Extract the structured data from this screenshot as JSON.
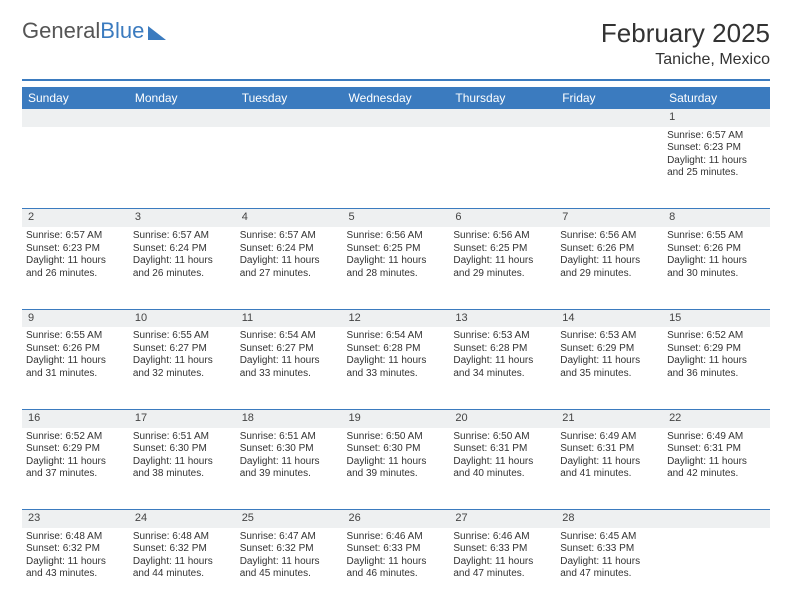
{
  "logo": {
    "word1": "General",
    "word2": "Blue"
  },
  "title": "February 2025",
  "location": "Taniche, Mexico",
  "colors": {
    "accent": "#3b7bbf",
    "header_bg": "#3b7bbf",
    "header_text": "#ffffff",
    "daynum_bg": "#eef0f1",
    "border": "#3b7bbf",
    "text": "#333333",
    "background": "#ffffff"
  },
  "dayHeaders": [
    "Sunday",
    "Monday",
    "Tuesday",
    "Wednesday",
    "Thursday",
    "Friday",
    "Saturday"
  ],
  "weeks": [
    [
      null,
      null,
      null,
      null,
      null,
      null,
      {
        "n": "1",
        "sr": "Sunrise: 6:57 AM",
        "ss": "Sunset: 6:23 PM",
        "dl": "Daylight: 11 hours and 25 minutes."
      }
    ],
    [
      {
        "n": "2",
        "sr": "Sunrise: 6:57 AM",
        "ss": "Sunset: 6:23 PM",
        "dl": "Daylight: 11 hours and 26 minutes."
      },
      {
        "n": "3",
        "sr": "Sunrise: 6:57 AM",
        "ss": "Sunset: 6:24 PM",
        "dl": "Daylight: 11 hours and 26 minutes."
      },
      {
        "n": "4",
        "sr": "Sunrise: 6:57 AM",
        "ss": "Sunset: 6:24 PM",
        "dl": "Daylight: 11 hours and 27 minutes."
      },
      {
        "n": "5",
        "sr": "Sunrise: 6:56 AM",
        "ss": "Sunset: 6:25 PM",
        "dl": "Daylight: 11 hours and 28 minutes."
      },
      {
        "n": "6",
        "sr": "Sunrise: 6:56 AM",
        "ss": "Sunset: 6:25 PM",
        "dl": "Daylight: 11 hours and 29 minutes."
      },
      {
        "n": "7",
        "sr": "Sunrise: 6:56 AM",
        "ss": "Sunset: 6:26 PM",
        "dl": "Daylight: 11 hours and 29 minutes."
      },
      {
        "n": "8",
        "sr": "Sunrise: 6:55 AM",
        "ss": "Sunset: 6:26 PM",
        "dl": "Daylight: 11 hours and 30 minutes."
      }
    ],
    [
      {
        "n": "9",
        "sr": "Sunrise: 6:55 AM",
        "ss": "Sunset: 6:26 PM",
        "dl": "Daylight: 11 hours and 31 minutes."
      },
      {
        "n": "10",
        "sr": "Sunrise: 6:55 AM",
        "ss": "Sunset: 6:27 PM",
        "dl": "Daylight: 11 hours and 32 minutes."
      },
      {
        "n": "11",
        "sr": "Sunrise: 6:54 AM",
        "ss": "Sunset: 6:27 PM",
        "dl": "Daylight: 11 hours and 33 minutes."
      },
      {
        "n": "12",
        "sr": "Sunrise: 6:54 AM",
        "ss": "Sunset: 6:28 PM",
        "dl": "Daylight: 11 hours and 33 minutes."
      },
      {
        "n": "13",
        "sr": "Sunrise: 6:53 AM",
        "ss": "Sunset: 6:28 PM",
        "dl": "Daylight: 11 hours and 34 minutes."
      },
      {
        "n": "14",
        "sr": "Sunrise: 6:53 AM",
        "ss": "Sunset: 6:29 PM",
        "dl": "Daylight: 11 hours and 35 minutes."
      },
      {
        "n": "15",
        "sr": "Sunrise: 6:52 AM",
        "ss": "Sunset: 6:29 PM",
        "dl": "Daylight: 11 hours and 36 minutes."
      }
    ],
    [
      {
        "n": "16",
        "sr": "Sunrise: 6:52 AM",
        "ss": "Sunset: 6:29 PM",
        "dl": "Daylight: 11 hours and 37 minutes."
      },
      {
        "n": "17",
        "sr": "Sunrise: 6:51 AM",
        "ss": "Sunset: 6:30 PM",
        "dl": "Daylight: 11 hours and 38 minutes."
      },
      {
        "n": "18",
        "sr": "Sunrise: 6:51 AM",
        "ss": "Sunset: 6:30 PM",
        "dl": "Daylight: 11 hours and 39 minutes."
      },
      {
        "n": "19",
        "sr": "Sunrise: 6:50 AM",
        "ss": "Sunset: 6:30 PM",
        "dl": "Daylight: 11 hours and 39 minutes."
      },
      {
        "n": "20",
        "sr": "Sunrise: 6:50 AM",
        "ss": "Sunset: 6:31 PM",
        "dl": "Daylight: 11 hours and 40 minutes."
      },
      {
        "n": "21",
        "sr": "Sunrise: 6:49 AM",
        "ss": "Sunset: 6:31 PM",
        "dl": "Daylight: 11 hours and 41 minutes."
      },
      {
        "n": "22",
        "sr": "Sunrise: 6:49 AM",
        "ss": "Sunset: 6:31 PM",
        "dl": "Daylight: 11 hours and 42 minutes."
      }
    ],
    [
      {
        "n": "23",
        "sr": "Sunrise: 6:48 AM",
        "ss": "Sunset: 6:32 PM",
        "dl": "Daylight: 11 hours and 43 minutes."
      },
      {
        "n": "24",
        "sr": "Sunrise: 6:48 AM",
        "ss": "Sunset: 6:32 PM",
        "dl": "Daylight: 11 hours and 44 minutes."
      },
      {
        "n": "25",
        "sr": "Sunrise: 6:47 AM",
        "ss": "Sunset: 6:32 PM",
        "dl": "Daylight: 11 hours and 45 minutes."
      },
      {
        "n": "26",
        "sr": "Sunrise: 6:46 AM",
        "ss": "Sunset: 6:33 PM",
        "dl": "Daylight: 11 hours and 46 minutes."
      },
      {
        "n": "27",
        "sr": "Sunrise: 6:46 AM",
        "ss": "Sunset: 6:33 PM",
        "dl": "Daylight: 11 hours and 47 minutes."
      },
      {
        "n": "28",
        "sr": "Sunrise: 6:45 AM",
        "ss": "Sunset: 6:33 PM",
        "dl": "Daylight: 11 hours and 47 minutes."
      },
      null
    ]
  ]
}
